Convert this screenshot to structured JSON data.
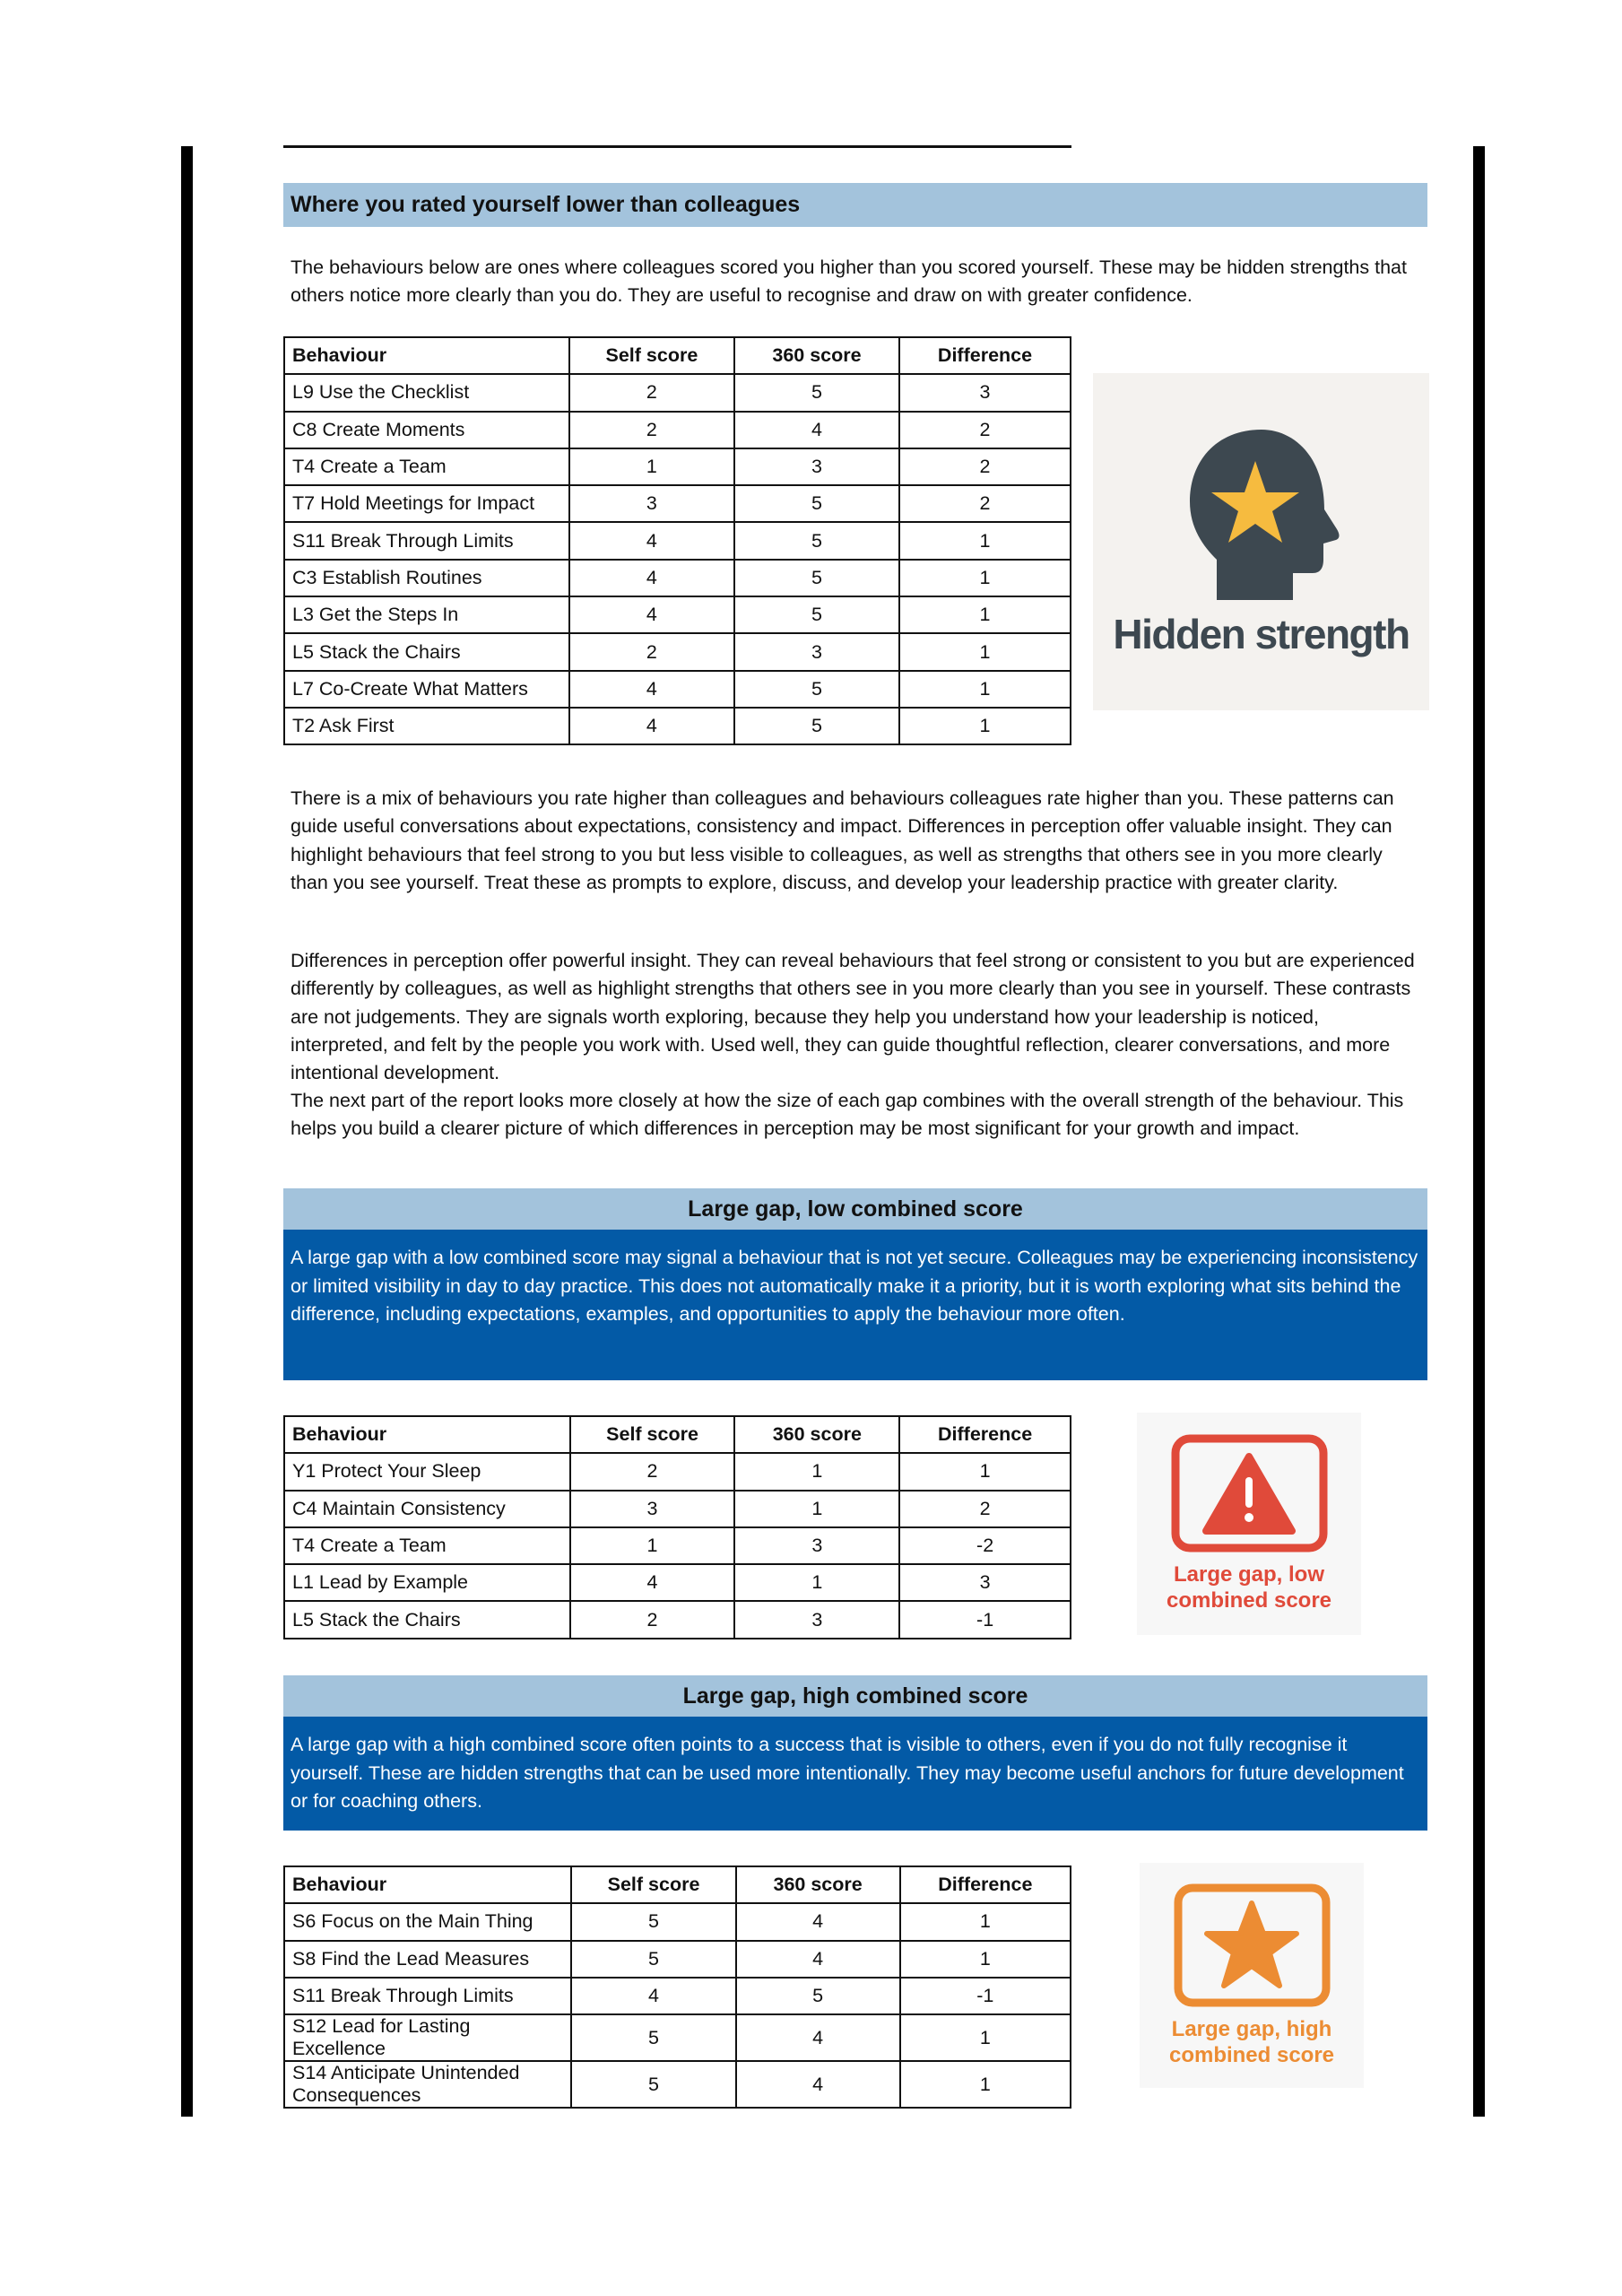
{
  "section1": {
    "title": "Where you rated yourself lower than colleagues",
    "intro": "The behaviours below are ones where colleagues scored you higher than you scored yourself. These may be hidden strengths that others notice more clearly than you do. They are useful to recognise and draw on with greater confidence.",
    "headers": [
      "Behaviour",
      "Self score",
      "360 score",
      "Difference"
    ],
    "rows": [
      [
        "L9 Use the Checklist",
        "2",
        "5",
        "3"
      ],
      [
        "C8 Create Moments",
        "2",
        "4",
        "2"
      ],
      [
        "T4 Create a Team",
        "1",
        "3",
        "2"
      ],
      [
        "T7 Hold Meetings for Impact",
        "3",
        "5",
        "2"
      ],
      [
        "S11 Break Through Limits",
        "4",
        "5",
        "1"
      ],
      [
        "C3 Establish Routines",
        "4",
        "5",
        "1"
      ],
      [
        "L3 Get the Steps In",
        "4",
        "5",
        "1"
      ],
      [
        "L5 Stack the Chairs",
        "2",
        "3",
        "1"
      ],
      [
        "L7 Co-Create What Matters",
        "4",
        "5",
        "1"
      ],
      [
        "T2 Ask First",
        "4",
        "5",
        "1"
      ]
    ],
    "image_caption": "Hidden strength",
    "image_icon": "head-with-star-icon"
  },
  "paragraph2": "There is a mix of behaviours you rate higher than colleagues and behaviours colleagues rate higher than you. These patterns can guide useful conversations about expectations, consistency and impact. Differences in perception offer valuable insight. They can highlight behaviours that feel strong to you but less visible to colleagues, as well as strengths that others see in you more clearly than you see yourself. Treat these as prompts to explore, discuss, and develop your leadership practice with greater clarity.",
  "paragraph3a": "Differences in perception offer powerful insight. They can reveal behaviours that feel strong or consistent to you but are experienced differently by colleagues, as well as highlight strengths that others see in you more clearly than you see in yourself. These contrasts are not judgements. They are signals worth exploring, because they help you understand how your leadership is noticed, interpreted, and felt by the people you work with. Used well, they can guide thoughtful reflection, clearer conversations, and more intentional development.",
  "paragraph3b": "The next part of the report looks more closely at how the size of each gap combines with the overall strength of the behaviour. This helps you build a clearer picture of which differences in perception may be most significant for your growth and impact.",
  "section2": {
    "title": "Large gap, low combined score",
    "description": "A large gap with a low combined score may signal a behaviour that is not yet secure. Colleagues may be experiencing inconsistency or limited visibility in day to day practice. This does not automatically make it a priority, but it is worth exploring what sits behind the difference, including expectations, examples, and opportunities to apply the behaviour more often.",
    "headers": [
      "Behaviour",
      "Self score",
      "360 score",
      "Difference"
    ],
    "rows": [
      [
        "Y1 Protect Your Sleep",
        "2",
        "1",
        "1"
      ],
      [
        "C4 Maintain Consistency",
        "3",
        "1",
        "2"
      ],
      [
        "T4 Create a Team",
        "1",
        "3",
        "-2"
      ],
      [
        "L1 Lead by Example",
        "4",
        "1",
        "3"
      ],
      [
        "L5 Stack the Chairs",
        "2",
        "3",
        "-1"
      ]
    ],
    "image_caption": "Large gap, low combined score",
    "image_icon": "warning-triangle-icon",
    "color": "#e04a3a"
  },
  "section3": {
    "title": "Large gap, high combined score",
    "description": "A large gap with a high combined score often points to a success that is visible to others, even if you do not fully recognise it yourself. These are hidden strengths that can be used more intentionally. They may become useful anchors for future development or for coaching others.",
    "headers": [
      "Behaviour",
      "Self score",
      "360 score",
      "Difference"
    ],
    "rows": [
      [
        "S6 Focus on the Main Thing",
        "5",
        "4",
        "1"
      ],
      [
        "S8 Find the Lead Measures",
        "5",
        "4",
        "1"
      ],
      [
        "S11 Break Through Limits",
        "4",
        "5",
        "-1"
      ],
      [
        "S12 Lead for Lasting Excellence",
        "5",
        "4",
        "1"
      ],
      [
        "S14 Anticipate Unintended Consequences",
        "5",
        "4",
        "1"
      ]
    ],
    "image_caption": "Large gap, high combined score",
    "image_icon": "star-icon",
    "color": "#ec8c33"
  }
}
